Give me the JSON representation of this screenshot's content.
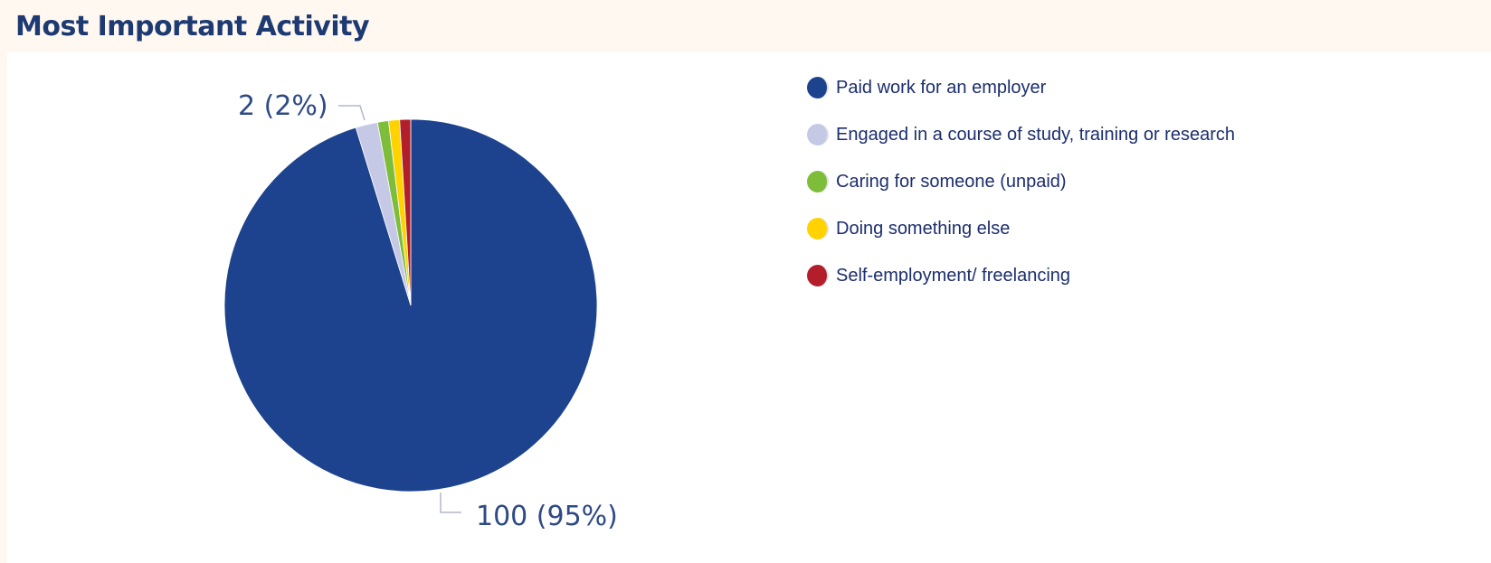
{
  "header": {
    "title": "Most Important Activity"
  },
  "chart_data": {
    "type": "pie",
    "title": "Most Important Activity",
    "slices": [
      {
        "label": "Paid work for an employer",
        "value": 100,
        "color": "#1d428e"
      },
      {
        "label": "Engaged in a course of study, training or research",
        "value": 2,
        "color": "#c5c9e6"
      },
      {
        "label": "Caring for someone (unpaid)",
        "value": 1,
        "color": "#7dbd3a"
      },
      {
        "label": "Doing something else",
        "value": 1,
        "color": "#ffd200"
      },
      {
        "label": "Self-employment/ freelancing",
        "value": 1,
        "color": "#b21f2a"
      }
    ],
    "data_labels": [
      {
        "slice": 0,
        "text": "100 (95%)"
      },
      {
        "slice": 1,
        "text": "2 (2%)"
      }
    ],
    "legend_position": "right"
  }
}
